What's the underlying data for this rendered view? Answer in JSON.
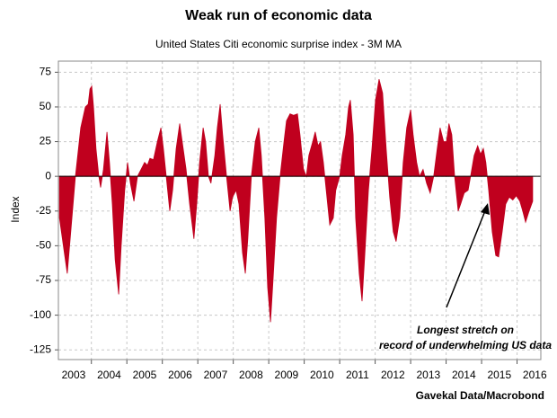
{
  "chart_data": {
    "type": "area",
    "title": "Weak run of economic data",
    "subtitle": "United States Citi economic surprise index - 3M MA",
    "y_label": "Index",
    "source": "Gavekal Data/Macrobond",
    "annotation": [
      "Longest stretch on",
      "record of underwhelming US data"
    ],
    "xlim": [
      2003.07,
      2016.67
    ],
    "ylim": [
      -132,
      83
    ],
    "xticks": [
      2003,
      2004,
      2005,
      2006,
      2007,
      2008,
      2009,
      2010,
      2011,
      2012,
      2013,
      2014,
      2015,
      2016
    ],
    "yticks": [
      75,
      50,
      25,
      0,
      -25,
      -50,
      -75,
      -100,
      -125
    ],
    "grid": true,
    "x": [
      2003.1,
      2003.32,
      2003.55,
      2003.7,
      2003.83,
      2003.91,
      2003.96,
      2004.01,
      2004.06,
      2004.13,
      2004.21,
      2004.26,
      2004.34,
      2004.44,
      2004.51,
      2004.59,
      2004.67,
      2004.77,
      2004.84,
      2004.94,
      2005.02,
      2005.1,
      2005.2,
      2005.3,
      2005.4,
      2005.5,
      2005.58,
      2005.65,
      2005.75,
      2005.86,
      2005.96,
      2006.03,
      2006.11,
      2006.21,
      2006.29,
      2006.39,
      2006.49,
      2006.56,
      2006.67,
      2006.77,
      2006.89,
      2006.97,
      2007.05,
      2007.15,
      2007.22,
      2007.3,
      2007.37,
      2007.48,
      2007.55,
      2007.63,
      2007.7,
      2007.81,
      2007.91,
      2007.98,
      2008.08,
      2008.16,
      2008.26,
      2008.34,
      2008.41,
      2008.51,
      2008.62,
      2008.72,
      2008.79,
      2008.89,
      2008.97,
      2009.05,
      2009.12,
      2009.22,
      2009.32,
      2009.43,
      2009.5,
      2009.6,
      2009.7,
      2009.81,
      2009.88,
      2009.98,
      2010.06,
      2010.13,
      2010.24,
      2010.31,
      2010.39,
      2010.46,
      2010.54,
      2010.64,
      2010.72,
      2010.82,
      2010.89,
      2011.0,
      2011.07,
      2011.17,
      2011.25,
      2011.3,
      2011.38,
      2011.45,
      2011.55,
      2011.63,
      2011.7,
      2011.81,
      2011.91,
      2012.01,
      2012.11,
      2012.21,
      2012.31,
      2012.41,
      2012.51,
      2012.59,
      2012.69,
      2012.79,
      2012.89,
      2013.0,
      2013.07,
      2013.17,
      2013.25,
      2013.35,
      2013.45,
      2013.55,
      2013.65,
      2013.75,
      2013.83,
      2013.93,
      2014.01,
      2014.08,
      2014.16,
      2014.24,
      2014.34,
      2014.41,
      2014.51,
      2014.62,
      2014.69,
      2014.79,
      2014.89,
      2014.97,
      2015.05,
      2015.12,
      2015.2,
      2015.3,
      2015.4,
      2015.48,
      2015.58,
      2015.68,
      2015.78,
      2015.88,
      2015.98,
      2016.08,
      2016.16,
      2016.24,
      2016.34,
      2016.44
    ],
    "series": [
      {
        "name": "United States Citi economic surprise index - 3M MA",
        "color": "#c0001e",
        "values": [
          -30,
          -70,
          0,
          35,
          50,
          52,
          63,
          65,
          50,
          20,
          0,
          -8,
          5,
          32,
          10,
          -20,
          -60,
          -85,
          -50,
          -10,
          10,
          -5,
          -18,
          0,
          5,
          10,
          8,
          13,
          12,
          25,
          35,
          20,
          0,
          -25,
          -10,
          20,
          38,
          25,
          5,
          -20,
          -45,
          -20,
          10,
          35,
          25,
          0,
          -5,
          15,
          35,
          52,
          30,
          0,
          -25,
          -15,
          -10,
          -20,
          -55,
          -70,
          -45,
          0,
          25,
          35,
          15,
          -30,
          -80,
          -105,
          -75,
          -30,
          0,
          25,
          40,
          45,
          44,
          45,
          30,
          5,
          0,
          15,
          25,
          32,
          22,
          25,
          10,
          -15,
          -35,
          -30,
          -10,
          0,
          15,
          30,
          50,
          55,
          30,
          -30,
          -70,
          -90,
          -60,
          -10,
          20,
          55,
          70,
          60,
          20,
          -15,
          -40,
          -47,
          -30,
          10,
          35,
          48,
          30,
          10,
          0,
          5,
          -5,
          -12,
          0,
          20,
          35,
          25,
          25,
          38,
          30,
          0,
          -25,
          -20,
          -12,
          -10,
          0,
          15,
          22,
          16,
          20,
          10,
          -10,
          -40,
          -57,
          -58,
          -40,
          -20,
          -15,
          -17,
          -14,
          -18,
          -25,
          -33,
          -25,
          -18
        ]
      }
    ]
  }
}
